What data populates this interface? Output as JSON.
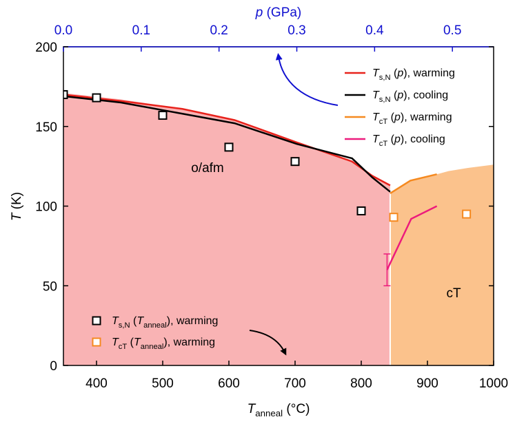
{
  "chart_data": {
    "type": "line",
    "xlabel": [
      {
        "text": "T",
        "style": "italic"
      },
      {
        "text": "anneal",
        "style": "sub"
      },
      {
        "text": " (°C)",
        "style": "normal"
      }
    ],
    "x2label": [
      {
        "text": "p",
        "style": "italic"
      },
      {
        "text": " (GPa)",
        "style": "normal"
      }
    ],
    "ylabel": [
      {
        "text": "T",
        "style": "italic"
      },
      {
        "text": " (K)",
        "style": "normal"
      }
    ],
    "xlim": [
      350,
      1000
    ],
    "xticks": [
      400,
      500,
      600,
      700,
      800,
      900,
      1000
    ],
    "x2lim": [
      0,
      0.553
    ],
    "x2ticks": [
      {
        "value": 0,
        "label": "0.0"
      },
      0.1,
      0.2,
      0.3,
      0.4,
      0.5
    ],
    "x2color": "#1010d0",
    "ylim": [
      0,
      200
    ],
    "yticks": [
      0,
      50,
      100,
      150,
      200
    ],
    "regions": [
      {
        "label": "o/afm",
        "color": "#f9b3b4",
        "x": [
          0,
          0.074,
          0.153,
          0.22,
          0.3,
          0.371,
          0.397,
          0.42
        ],
        "values": [
          171,
          167,
          161,
          154,
          140,
          128,
          119,
          113
        ]
      },
      {
        "label": "cT",
        "color": "#fbc28c",
        "x": [
          0.42,
          0.446,
          0.48,
          0.495,
          0.52,
          0.553
        ],
        "values": [
          108,
          116,
          120,
          122,
          124,
          126
        ]
      }
    ],
    "series": [
      {
        "name": [
          {
            "text": "T",
            "style": "italic"
          },
          {
            "text": "s,N",
            "style": "sub"
          },
          {
            "text": " (",
            "style": "normal"
          },
          {
            "text": "p",
            "style": "italic"
          },
          {
            "text": "), warming",
            "style": "normal"
          }
        ],
        "type": "line",
        "axis": "x2",
        "color": "#e8221c",
        "legend": "upper right",
        "x": [
          0,
          0.074,
          0.153,
          0.22,
          0.3,
          0.371,
          0.397,
          0.42
        ],
        "values": [
          170,
          166,
          161,
          154,
          140,
          128,
          119,
          113
        ]
      },
      {
        "name": [
          {
            "text": "T",
            "style": "italic"
          },
          {
            "text": "s,N",
            "style": "sub"
          },
          {
            "text": " (",
            "style": "normal"
          },
          {
            "text": "p",
            "style": "italic"
          },
          {
            "text": "), cooling",
            "style": "normal"
          }
        ],
        "type": "line",
        "axis": "x2",
        "color": "#000000",
        "legend": "upper right",
        "x": [
          0,
          0.074,
          0.153,
          0.22,
          0.3,
          0.371,
          0.397,
          0.42
        ],
        "values": [
          169,
          165,
          158,
          152,
          139,
          130,
          118,
          109
        ]
      },
      {
        "name": [
          {
            "text": "T",
            "style": "italic"
          },
          {
            "text": "cT",
            "style": "sub"
          },
          {
            "text": " (",
            "style": "normal"
          },
          {
            "text": "p",
            "style": "italic"
          },
          {
            "text": "), warming",
            "style": "normal"
          }
        ],
        "type": "line",
        "axis": "x2",
        "color": "#f5891f",
        "legend": "upper right",
        "x": [
          0.42,
          0.446,
          0.48
        ],
        "values": [
          108,
          116,
          120
        ]
      },
      {
        "name": [
          {
            "text": "T",
            "style": "italic"
          },
          {
            "text": "cT",
            "style": "sub"
          },
          {
            "text": " (",
            "style": "normal"
          },
          {
            "text": "p",
            "style": "italic"
          },
          {
            "text": "), cooling",
            "style": "normal"
          }
        ],
        "type": "line",
        "axis": "x2",
        "color": "#ec1b7c",
        "legend": "upper right",
        "x": [
          0.416,
          0.447,
          0.48
        ],
        "values": [
          60,
          92,
          100
        ],
        "errors": [
          10,
          null,
          null
        ]
      },
      {
        "name": [
          {
            "text": "T",
            "style": "italic"
          },
          {
            "text": "s,N",
            "style": "sub"
          },
          {
            "text": " (",
            "style": "normal"
          },
          {
            "text": "T",
            "style": "italic"
          },
          {
            "text": "anneal",
            "style": "sub"
          },
          {
            "text": "), warming",
            "style": "normal"
          }
        ],
        "type": "scatter",
        "axis": "x",
        "color": "#000000",
        "legend": "lower left",
        "x": [
          350,
          400,
          500,
          600,
          700,
          800
        ],
        "values": [
          170,
          168,
          157,
          137,
          128,
          97
        ]
      },
      {
        "name": [
          {
            "text": "T",
            "style": "italic"
          },
          {
            "text": "cT",
            "style": "sub"
          },
          {
            "text": " (",
            "style": "normal"
          },
          {
            "text": "T",
            "style": "italic"
          },
          {
            "text": "anneal",
            "style": "sub"
          },
          {
            "text": "), warming",
            "style": "normal"
          }
        ],
        "type": "scatter",
        "axis": "x",
        "color": "#f5891f",
        "legend": "lower left",
        "x": [
          849,
          959
        ],
        "values": [
          93,
          95
        ]
      }
    ]
  }
}
